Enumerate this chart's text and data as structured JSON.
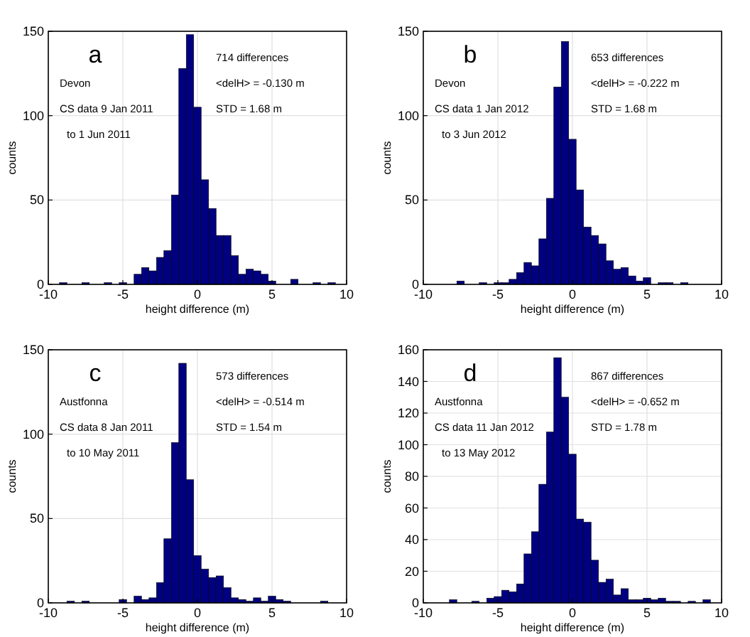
{
  "chart_data": [
    {
      "type": "histogram",
      "title": "a",
      "xlabel": "height difference (m)",
      "ylabel": "counts",
      "color": "#000080",
      "grid": true,
      "xlim": [
        -10,
        10
      ],
      "xticks": [
        -10,
        -5,
        0,
        5,
        10
      ],
      "ylim": [
        0,
        150
      ],
      "yticks": [
        0,
        50,
        100,
        150
      ],
      "annotations": [
        "Devon",
        "CS data 9 Jan 2011",
        "to 1 Jun 2011",
        "714 differences",
        "<delH> = -0.130 m",
        "STD = 1.68 m"
      ],
      "bins": [
        -9.75,
        -9.25,
        -8.75,
        -8.25,
        -7.75,
        -7.25,
        -6.75,
        -6.25,
        -5.75,
        -5.25,
        -4.75,
        -4.25,
        -3.75,
        -3.25,
        -2.75,
        -2.25,
        -1.75,
        -1.25,
        -0.75,
        -0.25,
        0.25,
        0.75,
        1.25,
        1.75,
        2.25,
        2.75,
        3.25,
        3.75,
        4.25,
        4.75,
        5.25,
        5.75,
        6.25,
        6.75,
        7.25,
        7.75,
        8.25,
        8.75,
        9.25,
        9.75
      ],
      "values": [
        0,
        1,
        0,
        0,
        1,
        0,
        0,
        1,
        0,
        1,
        0,
        6,
        10,
        8,
        16,
        20,
        53,
        128,
        148,
        105,
        62,
        45,
        29,
        29,
        17,
        6,
        9,
        8,
        6,
        2,
        0,
        0,
        3,
        0,
        0,
        1,
        0,
        1,
        0
      ]
    },
    {
      "type": "histogram",
      "title": "b",
      "xlabel": "height difference (m)",
      "ylabel": "counts",
      "color": "#000080",
      "grid": true,
      "xlim": [
        -10,
        10
      ],
      "xticks": [
        -10,
        -5,
        0,
        5,
        10
      ],
      "ylim": [
        0,
        150
      ],
      "yticks": [
        0,
        50,
        100,
        150
      ],
      "annotations": [
        "Devon",
        "CS data 1 Jan 2012",
        "to 3 Jun 2012",
        "653 differences",
        "<delH> = -0.222 m",
        "STD = 1.68 m"
      ],
      "bins": [
        -9.75,
        -9.25,
        -8.75,
        -8.25,
        -7.75,
        -7.25,
        -6.75,
        -6.25,
        -5.75,
        -5.25,
        -4.75,
        -4.25,
        -3.75,
        -3.25,
        -2.75,
        -2.25,
        -1.75,
        -1.25,
        -0.75,
        -0.25,
        0.25,
        0.75,
        1.25,
        1.75,
        2.25,
        2.75,
        3.25,
        3.75,
        4.25,
        4.75,
        5.25,
        5.75,
        6.25,
        6.75,
        7.25,
        7.75,
        8.25,
        8.75,
        9.25,
        9.75
      ],
      "values": [
        0,
        0,
        0,
        0,
        2,
        0,
        0,
        1,
        0,
        1,
        1,
        3,
        7,
        13,
        11,
        27,
        51,
        117,
        144,
        86,
        56,
        34,
        29,
        24,
        14,
        9,
        10,
        5,
        2,
        4,
        0,
        1,
        1,
        0,
        1,
        0,
        0,
        0,
        0
      ]
    },
    {
      "type": "histogram",
      "title": "c",
      "xlabel": "height difference (m)",
      "ylabel": "counts",
      "color": "#000080",
      "grid": true,
      "xlim": [
        -10,
        10
      ],
      "xticks": [
        -10,
        -5,
        0,
        5,
        10
      ],
      "ylim": [
        0,
        150
      ],
      "yticks": [
        0,
        50,
        100,
        150
      ],
      "annotations": [
        "Austfonna",
        "CS data 8 Jan 2011",
        "to 10 May 2011",
        "573 differences",
        "<delH> = -0.514 m",
        "STD = 1.54 m"
      ],
      "bins": [
        -9.75,
        -9.25,
        -8.75,
        -8.25,
        -7.75,
        -7.25,
        -6.75,
        -6.25,
        -5.75,
        -5.25,
        -4.75,
        -4.25,
        -3.75,
        -3.25,
        -2.75,
        -2.25,
        -1.75,
        -1.25,
        -0.75,
        -0.25,
        0.25,
        0.75,
        1.25,
        1.75,
        2.25,
        2.75,
        3.25,
        3.75,
        4.25,
        4.75,
        5.25,
        5.75,
        6.25,
        6.75,
        7.25,
        7.75,
        8.25,
        8.75,
        9.25,
        9.75
      ],
      "values": [
        0,
        0,
        1,
        0,
        1,
        0,
        0,
        0,
        0,
        2,
        0,
        4,
        2,
        3,
        12,
        38,
        95,
        142,
        73,
        28,
        20,
        15,
        16,
        9,
        3,
        2,
        1,
        3,
        1,
        4,
        2,
        1,
        0,
        0,
        0,
        0,
        1,
        0,
        0
      ]
    },
    {
      "type": "histogram",
      "title": "d",
      "xlabel": "height difference (m)",
      "ylabel": "counts",
      "color": "#000080",
      "grid": true,
      "xlim": [
        -10,
        10
      ],
      "xticks": [
        -10,
        -5,
        0,
        5,
        10
      ],
      "ylim": [
        0,
        160
      ],
      "yticks": [
        0,
        20,
        40,
        60,
        80,
        100,
        120,
        140,
        160
      ],
      "annotations": [
        "Austfonna",
        "CS data 11 Jan 2012",
        "to 13 May 2012",
        "867 differences",
        "<delH> = -0.652 m",
        "STD = 1.78 m"
      ],
      "bins": [
        -9.75,
        -9.25,
        -8.75,
        -8.25,
        -7.75,
        -7.25,
        -6.75,
        -6.25,
        -5.75,
        -5.25,
        -4.75,
        -4.25,
        -3.75,
        -3.25,
        -2.75,
        -2.25,
        -1.75,
        -1.25,
        -0.75,
        -0.25,
        0.25,
        0.75,
        1.25,
        1.75,
        2.25,
        2.75,
        3.25,
        3.75,
        4.25,
        4.75,
        5.25,
        5.75,
        6.25,
        6.75,
        7.25,
        7.75,
        8.25,
        8.75,
        9.25,
        9.75
      ],
      "values": [
        0,
        0,
        0,
        2,
        0,
        0,
        1,
        0,
        3,
        4,
        8,
        7,
        12,
        31,
        45,
        75,
        108,
        155,
        130,
        94,
        53,
        51,
        27,
        13,
        15,
        5,
        9,
        2,
        2,
        3,
        2,
        3,
        1,
        1,
        0,
        1,
        0,
        2,
        0
      ]
    }
  ]
}
